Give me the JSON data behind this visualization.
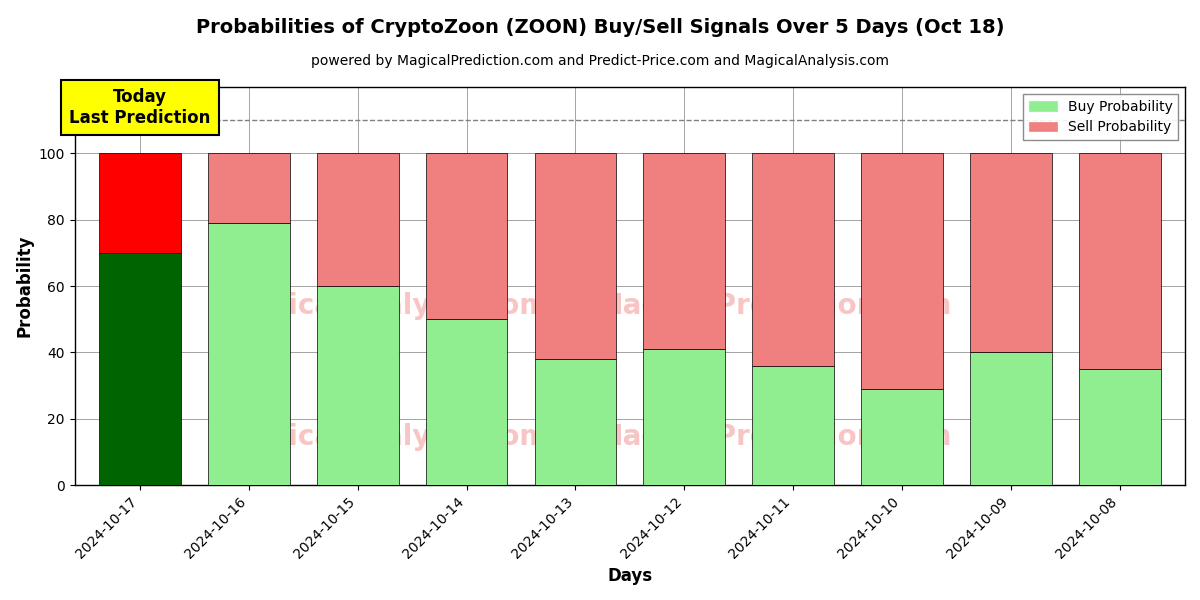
{
  "title": "Probabilities of CryptoZoon (ZOON) Buy/Sell Signals Over 5 Days (Oct 18)",
  "subtitle": "powered by MagicalPrediction.com and Predict-Price.com and MagicalAnalysis.com",
  "xlabel": "Days",
  "ylabel": "Probability",
  "dates": [
    "2024-10-17",
    "2024-10-16",
    "2024-10-15",
    "2024-10-14",
    "2024-10-13",
    "2024-10-12",
    "2024-10-11",
    "2024-10-10",
    "2024-10-09",
    "2024-10-08"
  ],
  "buy_values": [
    70,
    79,
    60,
    50,
    38,
    41,
    36,
    29,
    40,
    35
  ],
  "sell_values": [
    30,
    21,
    40,
    50,
    62,
    59,
    64,
    71,
    60,
    65
  ],
  "today_buy_color": "#006400",
  "today_sell_color": "#FF0000",
  "buy_color": "#90EE90",
  "sell_color": "#F08080",
  "today_label_bg": "#FFFF00",
  "today_label_text": "Today\nLast Prediction",
  "legend_buy": "Buy Probability",
  "legend_sell": "Sell Probability",
  "ylim": [
    0,
    120
  ],
  "yticks": [
    0,
    20,
    40,
    60,
    80,
    100
  ],
  "dashed_line_y": 110,
  "fig_width": 12.0,
  "fig_height": 6.0,
  "bar_width": 0.75
}
